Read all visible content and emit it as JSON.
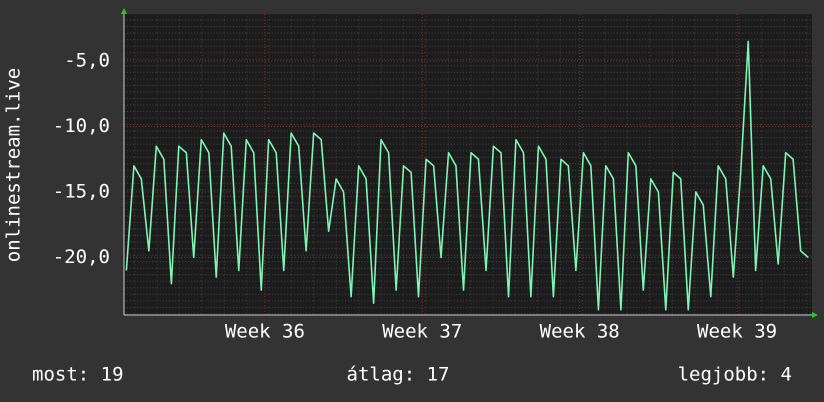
{
  "chart_data": {
    "type": "line",
    "y_label": "onlinestream.live",
    "xlim": [
      35.105,
      39.476
    ],
    "ylim": [
      -24.4,
      -1.4
    ],
    "xticks": [
      {
        "value": 36,
        "label": "Week 36"
      },
      {
        "value": 37,
        "label": "Week 37"
      },
      {
        "value": 38,
        "label": "Week 38"
      },
      {
        "value": 39,
        "label": "Week 39"
      }
    ],
    "yticks": [
      {
        "value": -20,
        "label": "-20,0"
      },
      {
        "value": -15,
        "label": "-15,0"
      },
      {
        "value": -10,
        "label": "-10,0"
      },
      {
        "value": -5,
        "label": "-5,0"
      }
    ],
    "grid": true,
    "x": [
      35.12,
      35.168,
      35.215,
      35.263,
      35.31,
      35.358,
      35.406,
      35.453,
      35.501,
      35.548,
      35.596,
      35.644,
      35.691,
      35.739,
      35.786,
      35.834,
      35.882,
      35.929,
      35.977,
      36.024,
      36.072,
      36.12,
      36.167,
      36.215,
      36.262,
      36.31,
      36.358,
      36.405,
      36.453,
      36.5,
      36.548,
      36.596,
      36.643,
      36.691,
      36.738,
      36.786,
      36.834,
      36.881,
      36.929,
      36.976,
      37.024,
      37.072,
      37.119,
      37.167,
      37.214,
      37.262,
      37.31,
      37.357,
      37.405,
      37.452,
      37.5,
      37.548,
      37.595,
      37.643,
      37.69,
      37.738,
      37.786,
      37.833,
      37.881,
      37.928,
      37.976,
      38.024,
      38.071,
      38.119,
      38.166,
      38.214,
      38.262,
      38.309,
      38.357,
      38.404,
      38.452,
      38.5,
      38.547,
      38.595,
      38.642,
      38.69,
      38.738,
      38.785,
      38.833,
      38.88,
      38.928,
      38.976,
      39.023,
      39.071,
      39.118,
      39.166,
      39.214,
      39.261,
      39.309,
      39.356,
      39.404,
      39.452
    ],
    "series": [
      {
        "color": "#7ff5b4",
        "values": [
          -21,
          -13,
          -14,
          -19.5,
          -11.5,
          -12.5,
          -22,
          -11.5,
          -12,
          -20,
          -11,
          -12,
          -21.5,
          -10.5,
          -11.5,
          -21,
          -11,
          -12,
          -22.5,
          -11,
          -12,
          -21,
          -10.5,
          -11.5,
          -19.5,
          -10.5,
          -11,
          -18,
          -14,
          -15,
          -23,
          -13,
          -14,
          -23.5,
          -11,
          -12,
          -22.5,
          -13,
          -13.5,
          -23,
          -12.5,
          -13,
          -20,
          -12,
          -13,
          -22.5,
          -12,
          -12.5,
          -21,
          -11.5,
          -12,
          -23,
          -11,
          -12,
          -23,
          -11.5,
          -12.5,
          -23,
          -12.5,
          -13,
          -21,
          -12,
          -13,
          -24,
          -13,
          -14,
          -24,
          -12,
          -13,
          -22.5,
          -14,
          -15,
          -24,
          -13.5,
          -14,
          -24,
          -15,
          -16,
          -23,
          -13,
          -14,
          -21.5,
          -13.5,
          -3.5,
          -21,
          -13,
          -14,
          -20.5,
          -12,
          -12.5,
          -19.5,
          -20
        ]
      }
    ],
    "footer": [
      "most: 19",
      "átlag: 17",
      "legjobb: 4"
    ]
  }
}
